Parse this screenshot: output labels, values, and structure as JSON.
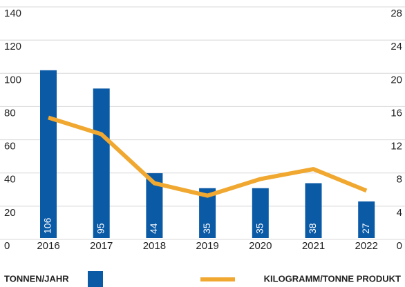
{
  "chart_data": {
    "type": "bar",
    "categories": [
      "2016",
      "2017",
      "2018",
      "2019",
      "2020",
      "2021",
      "2022"
    ],
    "series": [
      {
        "name": "TONNEN/JAHR",
        "color": "#0b5aa6",
        "values": [
          106,
          95,
          44,
          35,
          35,
          38,
          27
        ]
      },
      {
        "name": "KILOGRAMM/TONNE PRODUKT",
        "color": "#f0a830",
        "type": "line",
        "axis": "y2",
        "values": [
          15.5,
          13.5,
          7.6,
          6.1,
          8.1,
          9.3,
          6.7
        ]
      }
    ],
    "ylim": [
      0,
      140
    ],
    "yticks": [
      0,
      20,
      40,
      60,
      80,
      100,
      120,
      140
    ],
    "y2lim": [
      0,
      28
    ],
    "y2ticks": [
      0,
      4,
      8,
      12,
      16,
      20,
      24,
      28
    ],
    "grid": true
  }
}
